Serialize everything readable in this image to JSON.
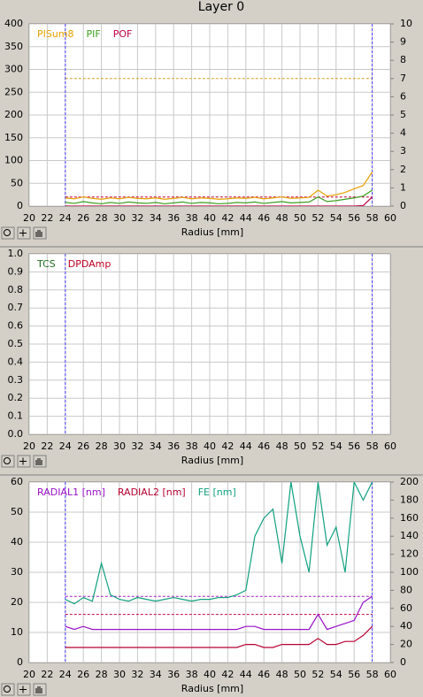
{
  "title": "Layer 0",
  "chart_data": [
    {
      "type": "line",
      "xlabel": "Radius [mm]",
      "x": [
        24,
        25,
        26,
        27,
        28,
        29,
        30,
        31,
        32,
        33,
        34,
        35,
        36,
        37,
        38,
        39,
        40,
        41,
        42,
        43,
        44,
        45,
        46,
        47,
        48,
        49,
        50,
        51,
        52,
        53,
        54,
        55,
        56,
        57,
        58
      ],
      "xlim": [
        20,
        60
      ],
      "xticks": [
        20,
        22,
        24,
        26,
        28,
        30,
        32,
        34,
        36,
        38,
        40,
        42,
        44,
        46,
        48,
        50,
        52,
        54,
        56,
        58,
        60
      ],
      "ylim": [
        0,
        400
      ],
      "yticks": [
        0,
        50,
        100,
        150,
        200,
        250,
        300,
        350,
        400
      ],
      "y2lim": [
        0,
        10
      ],
      "y2ticks": [
        0,
        1,
        2,
        3,
        4,
        5,
        6,
        7,
        8,
        9,
        10
      ],
      "grid": true,
      "vlines": [
        {
          "value": 24,
          "color": "#4b3cff"
        },
        {
          "value": 58,
          "color": "#4b3cff"
        }
      ],
      "hlines": [
        {
          "value": 280,
          "color": "#d8a020"
        },
        {
          "value": 20,
          "color": "#c00040"
        }
      ],
      "series": [
        {
          "name": "PISum8",
          "color": "#e8a000",
          "values": [
            18,
            16,
            20,
            17,
            15,
            18,
            16,
            19,
            17,
            16,
            18,
            15,
            17,
            19,
            16,
            18,
            17,
            15,
            16,
            18,
            17,
            19,
            16,
            18,
            20,
            17,
            18,
            19,
            35,
            22,
            25,
            30,
            38,
            45,
            75
          ]
        },
        {
          "name": "PIF",
          "color": "#3ca020",
          "values": [
            8,
            6,
            10,
            7,
            5,
            8,
            6,
            9,
            7,
            6,
            8,
            5,
            7,
            9,
            6,
            8,
            7,
            5,
            6,
            8,
            7,
            9,
            6,
            8,
            10,
            7,
            8,
            9,
            20,
            10,
            12,
            15,
            18,
            22,
            35
          ]
        },
        {
          "name": "POF",
          "color": "#c00040",
          "values": [
            0,
            0,
            0,
            0,
            0,
            0,
            0,
            0,
            0,
            0,
            0,
            0,
            0,
            0,
            0,
            0,
            0,
            0,
            0,
            0,
            0,
            0,
            0,
            0,
            0,
            0,
            0,
            0,
            0,
            0,
            0,
            0,
            0,
            1,
            20
          ]
        }
      ]
    },
    {
      "type": "line",
      "xlabel": "Radius [mm]",
      "x": [],
      "xlim": [
        20,
        60
      ],
      "xticks": [
        20,
        22,
        24,
        26,
        28,
        30,
        32,
        34,
        36,
        38,
        40,
        42,
        44,
        46,
        48,
        50,
        52,
        54,
        56,
        58,
        60
      ],
      "ylim": [
        0,
        1
      ],
      "yticks": [
        {
          "value": 0,
          "label": "0.0"
        },
        0.1,
        0.2,
        0.3,
        0.4,
        0.5,
        0.6,
        0.7,
        0.8,
        0.9,
        {
          "value": 1,
          "label": "1.0"
        }
      ],
      "grid": true,
      "vlines": [
        {
          "value": 24,
          "color": "#4b3cff"
        },
        {
          "value": 58,
          "color": "#4b3cff"
        }
      ],
      "hlines": [],
      "series": [
        {
          "name": "TCS",
          "color": "#207020",
          "values": []
        },
        {
          "name": "DPDAmp",
          "color": "#c00020",
          "values": []
        }
      ]
    },
    {
      "type": "line",
      "xlabel": "Radius [mm]",
      "x": [
        24,
        25,
        26,
        27,
        28,
        29,
        30,
        31,
        32,
        33,
        34,
        35,
        36,
        37,
        38,
        39,
        40,
        41,
        42,
        43,
        44,
        45,
        46,
        47,
        48,
        49,
        50,
        51,
        52,
        53,
        54,
        55,
        56,
        57,
        58
      ],
      "xlim": [
        20,
        60
      ],
      "xticks": [
        20,
        22,
        24,
        26,
        28,
        30,
        32,
        34,
        36,
        38,
        40,
        42,
        44,
        46,
        48,
        50,
        52,
        54,
        56,
        58,
        60
      ],
      "ylim": [
        0,
        60
      ],
      "yticks": [
        0,
        10,
        20,
        30,
        40,
        50,
        60
      ],
      "y2lim": [
        0,
        200
      ],
      "y2ticks": [
        0,
        20,
        40,
        60,
        80,
        100,
        120,
        140,
        160,
        180,
        200
      ],
      "grid": true,
      "vlines": [
        {
          "value": 24,
          "color": "#4b3cff"
        },
        {
          "value": 58,
          "color": "#4b3cff"
        }
      ],
      "hlines": [
        {
          "value": 22,
          "color": "#a020c0"
        },
        {
          "value": 16,
          "color": "#c00040"
        }
      ],
      "series": [
        {
          "name": "RADIAL1 [nm]",
          "color": "#9a10c8",
          "values": [
            12,
            11,
            12,
            11,
            11,
            11,
            11,
            11,
            11,
            11,
            11,
            11,
            11,
            11,
            11,
            11,
            11,
            11,
            11,
            11,
            12,
            12,
            11,
            11,
            11,
            11,
            11,
            11,
            16,
            11,
            12,
            13,
            14,
            20,
            22
          ]
        },
        {
          "name": "RADIAL2 [nm]",
          "color": "#b80030",
          "values": [
            5,
            5,
            5,
            5,
            5,
            5,
            5,
            5,
            5,
            5,
            5,
            5,
            5,
            5,
            5,
            5,
            5,
            5,
            5,
            5,
            6,
            6,
            5,
            5,
            6,
            6,
            6,
            6,
            8,
            6,
            6,
            7,
            7,
            9,
            12
          ]
        },
        {
          "name": "FE [nm]",
          "color": "#10a080",
          "axis": "y2",
          "values": [
            70,
            65,
            72,
            68,
            110,
            75,
            70,
            68,
            72,
            70,
            68,
            70,
            72,
            70,
            68,
            70,
            70,
            72,
            72,
            75,
            80,
            140,
            160,
            170,
            110,
            200,
            140,
            100,
            200,
            130,
            150,
            100,
            200,
            180,
            200
          ]
        }
      ]
    }
  ]
}
